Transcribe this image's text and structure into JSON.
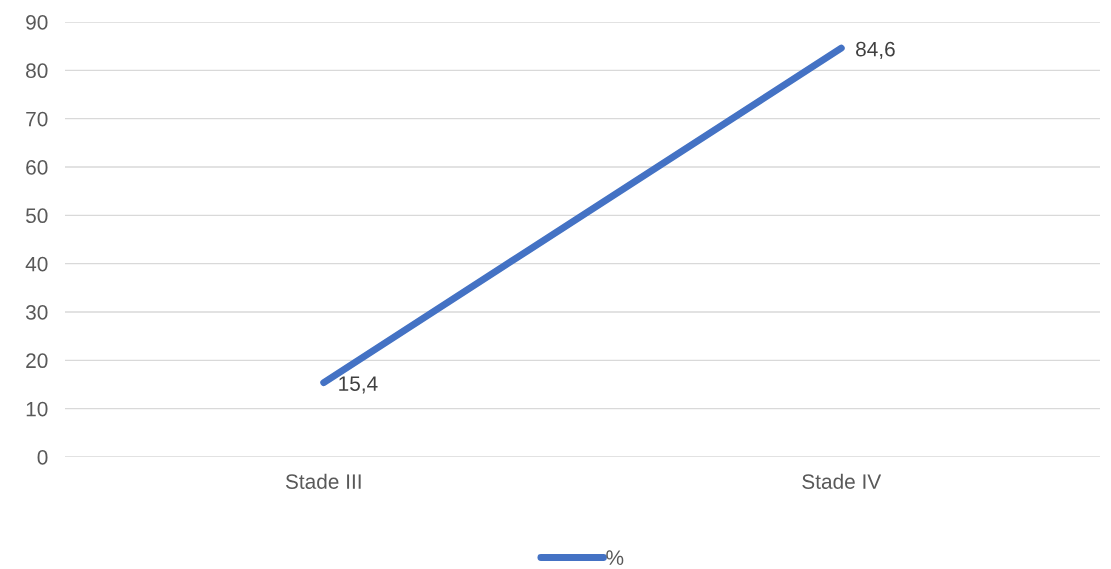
{
  "chart_data": {
    "type": "line",
    "categories": [
      "Stade III",
      "Stade IV"
    ],
    "series": [
      {
        "name": "%",
        "color": "#4472c4",
        "values": [
          15.4,
          84.6
        ],
        "value_labels": [
          "15,4",
          "84,6"
        ]
      }
    ],
    "ylim": [
      0,
      90
    ],
    "yticks": [
      0,
      10,
      20,
      30,
      40,
      50,
      60,
      70,
      80,
      90
    ],
    "grid": "y",
    "legend": "bottom",
    "marker": "none",
    "line_style": "solid"
  }
}
